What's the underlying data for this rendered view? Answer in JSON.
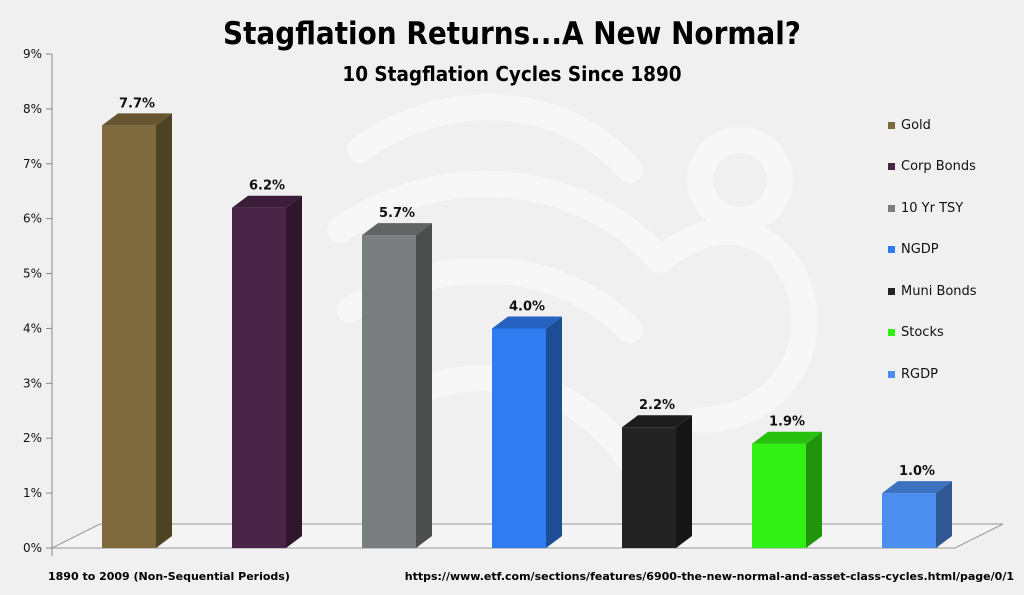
{
  "chart_data": {
    "type": "bar",
    "title": "Stagflation Returns...A New Normal?",
    "subtitle": "10 Stagflation Cycles Since 1890",
    "categories": [
      "Gold",
      "Corp Bonds",
      "10 Yr TSY",
      "NGDP",
      "Muni Bonds",
      "Stocks",
      "RGDP"
    ],
    "values": [
      7.7,
      6.2,
      5.7,
      4.0,
      2.2,
      1.9,
      1.0
    ],
    "data_labels": [
      "7.7%",
      "6.2%",
      "5.7%",
      "4.0%",
      "2.2%",
      "1.9%",
      "1.0%"
    ],
    "colors": [
      "#7e6a3c",
      "#4a2447",
      "#7a7d7d",
      "#2f7cf0",
      "#232323",
      "#33f014",
      "#4c8ef0"
    ],
    "ylim": [
      0,
      9
    ],
    "yticks": [
      "0%",
      "1%",
      "2%",
      "3%",
      "4%",
      "5%",
      "6%",
      "7%",
      "8%",
      "9%"
    ],
    "xlabel": "",
    "ylabel": "",
    "legend_position": "right",
    "grid": false
  },
  "footnotes": {
    "left": "1890 to 2009 (Non-Sequential Periods)",
    "right": "https://www.etf.com/sections/features/6900-the-new-normal-and-asset-class-cycles.html/page/0/1"
  }
}
